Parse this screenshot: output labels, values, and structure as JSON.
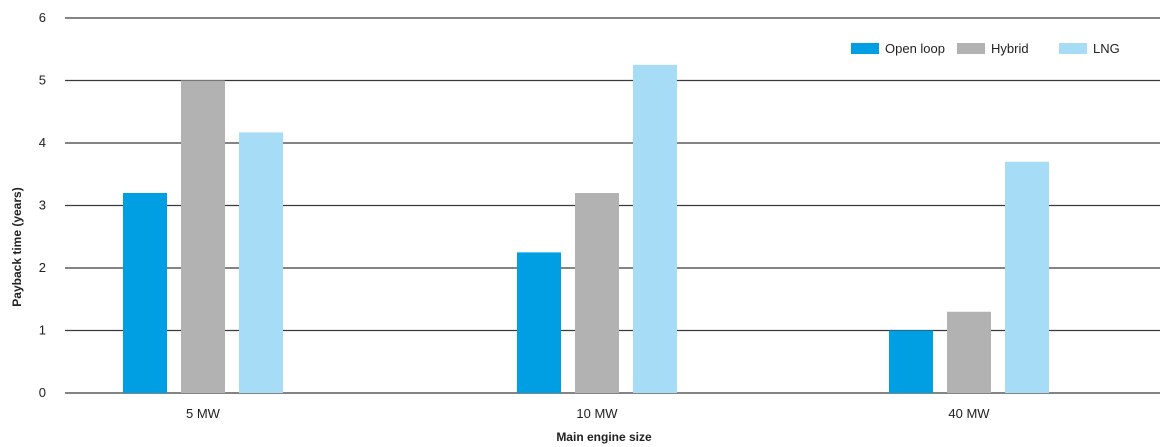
{
  "chart_data": {
    "type": "bar",
    "title": "",
    "xlabel": "Main engine size",
    "ylabel": "Payback time (years)",
    "ylim": [
      0,
      6
    ],
    "yticks": [
      0,
      1,
      2,
      3,
      4,
      5,
      6
    ],
    "grid": true,
    "legend_position": "top-right",
    "categories": [
      "5 MW",
      "10 MW",
      "40 MW"
    ],
    "series": [
      {
        "name": "Open loop",
        "color": "#009fe3",
        "values": [
          3.2,
          2.25,
          1.0
        ]
      },
      {
        "name": "Hybrid",
        "color": "#b2b2b2",
        "values": [
          5.0,
          3.2,
          1.3
        ]
      },
      {
        "name": "LNG",
        "color": "#a6dcf5",
        "values": [
          4.17,
          5.25,
          3.7
        ]
      }
    ]
  }
}
